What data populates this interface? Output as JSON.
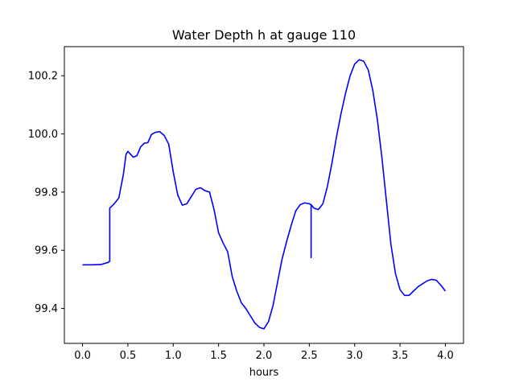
{
  "chart_data": {
    "type": "line",
    "title": "Water Depth h at gauge 110",
    "xlabel": "hours",
    "ylabel": "",
    "xlim": [
      -0.2,
      4.2
    ],
    "ylim": [
      99.28,
      100.3
    ],
    "xticks": [
      0.0,
      0.5,
      1.0,
      1.5,
      2.0,
      2.5,
      3.0,
      3.5,
      4.0
    ],
    "xtick_labels": [
      "0.0",
      "0.5",
      "1.0",
      "1.5",
      "2.0",
      "2.5",
      "3.0",
      "3.5",
      "4.0"
    ],
    "yticks": [
      99.4,
      99.6,
      99.8,
      100.0,
      100.2
    ],
    "ytick_labels": [
      "99.4",
      "99.6",
      "99.8",
      "100.0",
      "100.2"
    ],
    "grid": false,
    "line_color": "#0000ff",
    "series": [
      {
        "x": [
          0.0,
          0.1,
          0.2,
          0.28,
          0.3,
          0.3,
          0.35,
          0.4,
          0.45,
          0.48,
          0.5,
          0.53,
          0.56,
          0.6,
          0.64,
          0.68,
          0.72,
          0.76,
          0.8,
          0.85,
          0.9,
          0.95,
          1.0,
          1.05,
          1.1,
          1.15,
          1.2,
          1.25,
          1.3,
          1.35,
          1.4,
          1.45,
          1.5,
          1.55,
          1.6,
          1.65,
          1.7,
          1.75,
          1.8,
          1.85,
          1.9,
          1.95,
          2.0,
          2.05,
          2.1,
          2.15,
          2.2,
          2.25,
          2.3,
          2.35,
          2.4,
          2.45,
          2.5,
          2.52,
          2.52,
          2.52,
          2.55,
          2.6,
          2.65,
          2.7,
          2.75,
          2.8,
          2.85,
          2.9,
          2.95,
          3.0,
          3.05,
          3.1,
          3.15,
          3.2,
          3.25,
          3.3,
          3.35,
          3.4,
          3.45,
          3.5,
          3.55,
          3.6,
          3.65,
          3.7,
          3.75,
          3.8,
          3.85,
          3.9,
          3.95,
          4.0
        ],
        "y": [
          99.55,
          99.55,
          99.551,
          99.558,
          99.562,
          99.745,
          99.76,
          99.78,
          99.86,
          99.93,
          99.94,
          99.93,
          99.92,
          99.925,
          99.955,
          99.968,
          99.97,
          99.998,
          100.005,
          100.008,
          99.995,
          99.965,
          99.87,
          99.79,
          99.755,
          99.76,
          99.785,
          99.81,
          99.815,
          99.805,
          99.8,
          99.74,
          99.66,
          99.625,
          99.595,
          99.51,
          99.46,
          99.42,
          99.4,
          99.375,
          99.35,
          99.335,
          99.33,
          99.355,
          99.41,
          99.49,
          99.57,
          99.63,
          99.685,
          99.735,
          99.757,
          99.763,
          99.76,
          99.757,
          99.575,
          99.757,
          99.745,
          99.74,
          99.76,
          99.82,
          99.9,
          99.99,
          100.07,
          100.14,
          100.2,
          100.24,
          100.255,
          100.25,
          100.22,
          100.15,
          100.05,
          99.92,
          99.77,
          99.62,
          99.52,
          99.465,
          99.445,
          99.445,
          99.46,
          99.475,
          99.485,
          99.495,
          99.5,
          99.497,
          99.48,
          99.46
        ]
      }
    ]
  }
}
